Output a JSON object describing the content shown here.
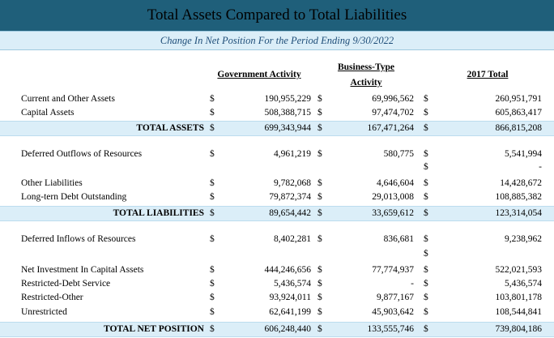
{
  "title": "Total Assets Compared to Total Liabilities",
  "subtitle": "Change In Net Position For the Period Ending 9/30/2022",
  "headers": {
    "gov": "Government Activity",
    "bus_line1": "Business-Type",
    "bus_line2": "Activity",
    "total": "2017 Total"
  },
  "rows": [
    {
      "label": "Current and Other Assets",
      "d1": "$",
      "v1": "190,955,229",
      "d2": "$",
      "v2": "69,996,562",
      "d3": "$",
      "v3": "260,951,791",
      "total": false
    },
    {
      "label": "Capital Assets",
      "d1": "$",
      "v1": "508,388,715",
      "d2": "$",
      "v2": "97,474,702",
      "d3": "$",
      "v3": "605,863,417",
      "total": false
    },
    {
      "label": "TOTAL ASSETS",
      "d1": "$",
      "v1": "699,343,944",
      "d2": "$",
      "v2": "167,471,264",
      "d3": "$",
      "v3": "866,815,208",
      "total": true
    },
    {
      "label": "Deferred Outflows of Resources",
      "d1": "$",
      "v1": "4,961,219",
      "d2": "$",
      "v2": "580,775",
      "d3": "$",
      "v3": "5,541,994",
      "total": false
    },
    {
      "label": "",
      "d1": "",
      "v1": "",
      "d2": "",
      "v2": "",
      "d3": "$",
      "v3": "-",
      "total": false
    },
    {
      "label": "Other Liabilities",
      "d1": "$",
      "v1": "9,782,068",
      "d2": "$",
      "v2": "4,646,604",
      "d3": "$",
      "v3": "14,428,672",
      "total": false
    },
    {
      "label": "Long-tern Debt Outstanding",
      "d1": "$",
      "v1": "79,872,374",
      "d2": "$",
      "v2": "29,013,008",
      "d3": "$",
      "v3": "108,885,382",
      "total": false
    },
    {
      "label": "TOTAL LIABILITIES",
      "d1": "$",
      "v1": "89,654,442",
      "d2": "$",
      "v2": "33,659,612",
      "d3": "$",
      "v3": "123,314,054",
      "total": true
    },
    {
      "label": "Deferred Inflows of Resources",
      "d1": "$",
      "v1": "8,402,281",
      "d2": "$",
      "v2": "836,681",
      "d3": "$",
      "v3": "9,238,962",
      "total": false
    },
    {
      "label": "",
      "d1": "",
      "v1": "",
      "d2": "",
      "v2": "",
      "d3": "$",
      "v3": "",
      "total": false
    },
    {
      "label": "Net Investment In Capital Assets",
      "d1": "$",
      "v1": "444,246,656",
      "d2": "$",
      "v2": "77,774,937",
      "d3": "$",
      "v3": "522,021,593",
      "total": false
    },
    {
      "label": "Restricted-Debt Service",
      "d1": "$",
      "v1": "5,436,574",
      "d2": "$",
      "v2": "-",
      "d3": "$",
      "v3": "5,436,574",
      "total": false
    },
    {
      "label": "Restricted-Other",
      "d1": "$",
      "v1": "93,924,011",
      "d2": "$",
      "v2": "9,877,167",
      "d3": "$",
      "v3": "103,801,178",
      "total": false
    },
    {
      "label": "Unrestricted",
      "d1": "$",
      "v1": "62,641,199",
      "d2": "$",
      "v2": "45,903,642",
      "d3": "$",
      "v3": "108,544,841",
      "total": false
    },
    {
      "label": "TOTAL NET POSITION",
      "d1": "$",
      "v1": "606,248,440",
      "d2": "$",
      "v2": "133,555,746",
      "d3": "$",
      "v3": "739,804,186",
      "total": true
    }
  ]
}
